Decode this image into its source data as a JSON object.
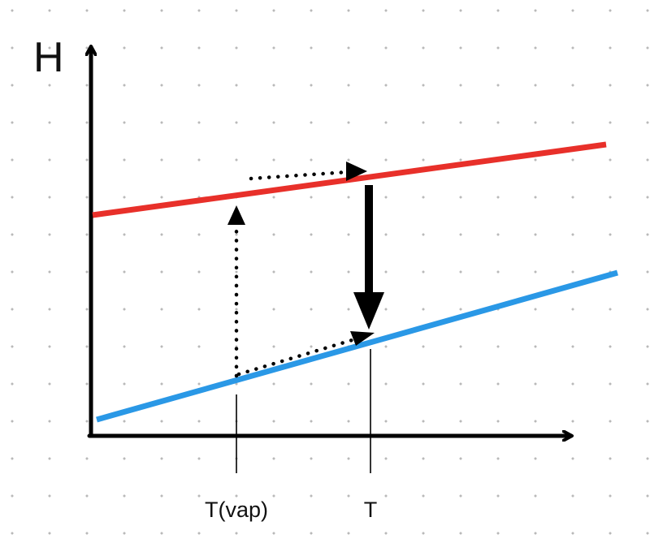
{
  "diagram": {
    "y_axis_label": "H",
    "x_tick_labels": {
      "t_vap": "T(vap)",
      "t": "T"
    },
    "colors": {
      "upper_line": "#e8302a",
      "lower_line": "#2a98e6",
      "axes": "#000000",
      "arrows": "#000000",
      "grid_dots": "#b9b9b9"
    }
  }
}
